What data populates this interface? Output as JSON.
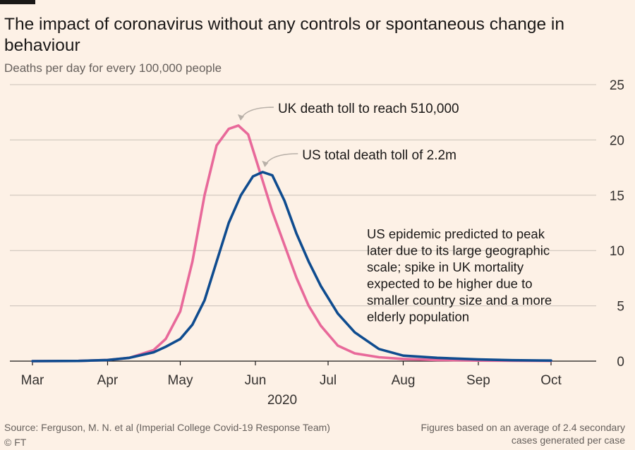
{
  "title": "The impact of coronavirus without any controls or spontaneous change in behaviour",
  "subtitle": "Deaths per day for every 100,000 people",
  "source": "Source: Ferguson, M. N. et al (Imperial College Covid-19 Response Team)",
  "credit": "© FT",
  "footnote": "Figures based on an average of 2.4 secondary cases generated per case",
  "colors": {
    "uk": "#e8699a",
    "us": "#0f4c8f",
    "grid": "#c9c1b8",
    "text": "#33302e"
  },
  "chart_data": {
    "type": "line",
    "title": "The impact of coronavirus without any controls or spontaneous change in behaviour",
    "subtitle": "Deaths per day for every 100,000 people",
    "xlabel": "2020",
    "ylabel": "",
    "ylim": [
      0,
      25
    ],
    "yticks": [
      "0",
      "5",
      "10",
      "15",
      "20",
      "25"
    ],
    "grid": true,
    "x_tick_labels": [
      "Mar",
      "Apr",
      "May",
      "Jun",
      "Jul",
      "Aug",
      "Sep",
      "Oct"
    ],
    "x_year_label": "2020",
    "series": [
      {
        "name": "UK",
        "color": "#e8699a",
        "x": [
          "2020-03-01",
          "2020-03-20",
          "2020-04-01",
          "2020-04-10",
          "2020-04-20",
          "2020-04-25",
          "2020-05-01",
          "2020-05-06",
          "2020-05-11",
          "2020-05-16",
          "2020-05-21",
          "2020-05-25",
          "2020-05-29",
          "2020-06-03",
          "2020-06-08",
          "2020-06-13",
          "2020-06-18",
          "2020-06-23",
          "2020-06-28",
          "2020-07-05",
          "2020-07-12",
          "2020-07-22",
          "2020-08-01",
          "2020-08-15",
          "2020-09-01",
          "2020-09-15",
          "2020-10-01"
        ],
        "values": [
          0,
          0.02,
          0.1,
          0.3,
          1.0,
          2.0,
          4.5,
          9,
          15,
          19.5,
          21,
          21.3,
          20.5,
          17,
          13.5,
          10.5,
          7.5,
          5,
          3.2,
          1.4,
          0.7,
          0.35,
          0.2,
          0.1,
          0.05,
          0.03,
          0.02
        ]
      },
      {
        "name": "US",
        "color": "#0f4c8f",
        "x": [
          "2020-03-01",
          "2020-03-20",
          "2020-04-01",
          "2020-04-10",
          "2020-04-20",
          "2020-04-25",
          "2020-05-01",
          "2020-05-06",
          "2020-05-11",
          "2020-05-16",
          "2020-05-21",
          "2020-05-26",
          "2020-05-31",
          "2020-06-04",
          "2020-06-08",
          "2020-06-13",
          "2020-06-18",
          "2020-06-23",
          "2020-06-28",
          "2020-07-05",
          "2020-07-12",
          "2020-07-22",
          "2020-08-01",
          "2020-08-15",
          "2020-09-01",
          "2020-09-15",
          "2020-10-01"
        ],
        "values": [
          0,
          0.02,
          0.1,
          0.3,
          0.8,
          1.3,
          2.0,
          3.3,
          5.5,
          9,
          12.5,
          15,
          16.7,
          17.1,
          16.8,
          14.5,
          11.5,
          9,
          6.8,
          4.3,
          2.6,
          1.1,
          0.5,
          0.3,
          0.15,
          0.08,
          0.05
        ]
      }
    ],
    "annotations": [
      {
        "text": "UK death toll to reach 510,000",
        "series": "UK",
        "x": "2020-05-25",
        "y": 21.3
      },
      {
        "text": "US total death toll of 2.2m",
        "series": "US",
        "x": "2020-06-04",
        "y": 17.1
      },
      {
        "text": "US epidemic predicted to peak later due to its large geographic scale; spike in UK mortality expected to be higher due to smaller country size and a more elderly population"
      }
    ]
  }
}
